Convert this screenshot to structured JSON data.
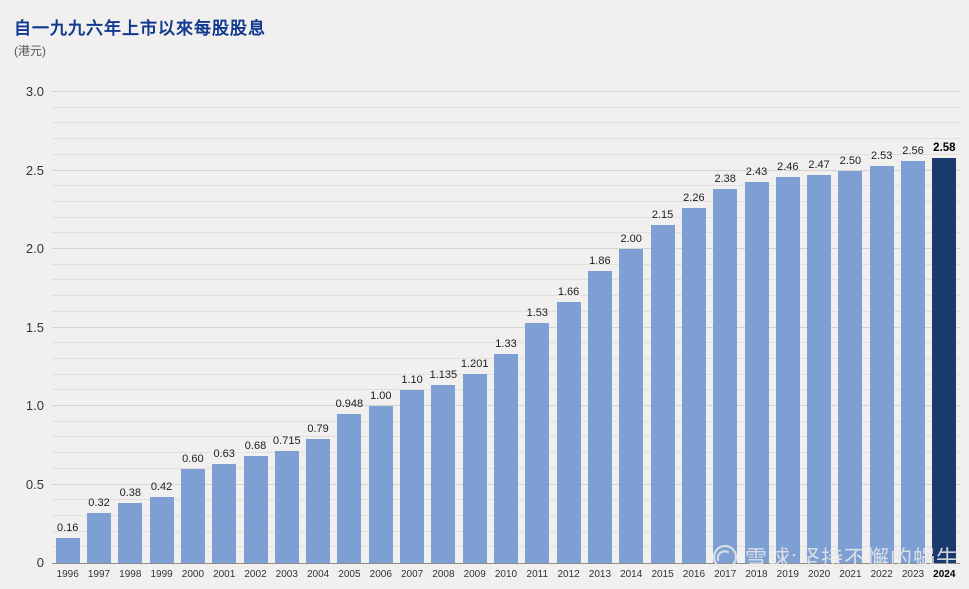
{
  "header": {
    "title": "自一九九六年上市以來每股股息",
    "unit": "(港元)"
  },
  "watermark": {
    "logo_icon": "snowball-icon",
    "text": "雪球:坚持不懈的蜗牛"
  },
  "colors": {
    "background": "#f1f0ee",
    "bar": "#7d9fd3",
    "bar_highlight": "#1a3a6e",
    "title": "#10398f",
    "gridline": "#e1e0dc",
    "axis_line": "#8d8d8b"
  },
  "chart_data": {
    "type": "bar",
    "title": "自一九九六年上市以來每股股息",
    "xlabel": "",
    "ylabel": "(港元)",
    "ylim": [
      0,
      3.0
    ],
    "ytick_step": 0.5,
    "grid_step": 0.1,
    "grid": true,
    "legend_position": "none",
    "categories": [
      "1996",
      "1997",
      "1998",
      "1999",
      "2000",
      "2001",
      "2002",
      "2003",
      "2004",
      "2005",
      "2006",
      "2007",
      "2008",
      "2009",
      "2010",
      "2011",
      "2012",
      "2013",
      "2014",
      "2015",
      "2016",
      "2017",
      "2018",
      "2019",
      "2020",
      "2021",
      "2022",
      "2023",
      "2024"
    ],
    "values": [
      0.16,
      0.32,
      0.38,
      0.42,
      0.6,
      0.63,
      0.68,
      0.715,
      0.79,
      0.948,
      1.0,
      1.1,
      1.135,
      1.201,
      1.33,
      1.53,
      1.66,
      1.86,
      2.0,
      2.15,
      2.26,
      2.38,
      2.43,
      2.46,
      2.47,
      2.5,
      2.53,
      2.56,
      2.58
    ],
    "value_labels": [
      "0.16",
      "0.32",
      "0.38",
      "0.42",
      "0.60",
      "0.63",
      "0.68",
      "0.715",
      "0.79",
      "0.948",
      "1.00",
      "1.10",
      "1.135",
      "1.201",
      "1.33",
      "1.53",
      "1.66",
      "1.86",
      "2.00",
      "2.15",
      "2.26",
      "2.38",
      "2.43",
      "2.46",
      "2.47",
      "2.50",
      "2.53",
      "2.56",
      "2.58"
    ],
    "highlight_index": 28
  }
}
